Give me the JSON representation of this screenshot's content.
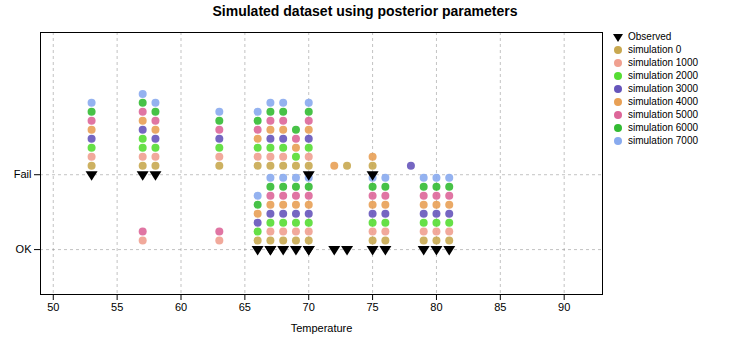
{
  "chart_data": {
    "type": "scatter",
    "title": "Simulated dataset using posterior parameters",
    "xlabel": "Temperature",
    "xlim": [
      49,
      93
    ],
    "xticks": [
      50,
      55,
      60,
      65,
      70,
      75,
      80,
      85,
      90
    ],
    "ylim": [
      -0.6,
      2.9
    ],
    "yticks": [
      {
        "value": 0,
        "label": "OK"
      },
      {
        "value": 1,
        "label": "Fail"
      }
    ],
    "grid": true,
    "legend": "upper right",
    "series": [
      {
        "name": "Observed",
        "color": "#000000",
        "marker": "triangle-down",
        "x": [
          53,
          57,
          58,
          70,
          75,
          66,
          67,
          67,
          68,
          69,
          70,
          70,
          72,
          73,
          75,
          76,
          79,
          80,
          81
        ],
        "values": [
          1,
          1,
          1,
          1,
          1,
          0,
          0,
          0,
          0,
          0,
          0,
          0,
          0,
          0,
          0,
          0,
          0,
          0,
          0
        ]
      },
      {
        "name": "simulation 0",
        "color": "#c8a850",
        "marker": "circle",
        "x": [
          53,
          57,
          58,
          63,
          66,
          67,
          68,
          69,
          70,
          73,
          75,
          66,
          67,
          68,
          69,
          70,
          75,
          76,
          79,
          80,
          81
        ],
        "values": [
          1,
          1,
          1,
          1,
          1,
          1,
          1,
          1,
          1,
          1,
          1,
          0,
          0,
          0,
          0,
          0,
          0,
          0,
          0,
          0,
          0
        ]
      },
      {
        "name": "simulation 1000",
        "color": "#f0a090",
        "marker": "circle",
        "x": [
          53,
          57,
          58,
          63,
          66,
          67,
          68,
          70,
          57,
          63,
          67,
          68,
          69,
          70,
          75,
          76,
          79,
          80,
          81
        ],
        "values": [
          1,
          1,
          1,
          1,
          1,
          1,
          1,
          1,
          0,
          0,
          0,
          0,
          0,
          0,
          0,
          0,
          0,
          0,
          0
        ]
      },
      {
        "name": "simulation 2000",
        "color": "#55dd33",
        "marker": "circle",
        "x": [
          53,
          57,
          57,
          58,
          63,
          66,
          67,
          68,
          69,
          70,
          66,
          67,
          68,
          69,
          70,
          75,
          76,
          79,
          80,
          81
        ],
        "values": [
          1,
          1,
          1,
          1,
          1,
          1,
          1,
          1,
          1,
          1,
          0,
          0,
          0,
          0,
          0,
          0,
          0,
          0,
          0,
          0
        ]
      },
      {
        "name": "simulation 3000",
        "color": "#6655bb",
        "marker": "circle",
        "x": [
          53,
          57,
          58,
          63,
          67,
          68,
          70,
          78,
          66,
          67,
          68,
          69,
          70,
          75,
          76,
          79,
          80,
          81
        ],
        "values": [
          1,
          1,
          1,
          1,
          1,
          1,
          1,
          1,
          0,
          0,
          0,
          0,
          0,
          0,
          0,
          0,
          0,
          0
        ]
      },
      {
        "name": "simulation 4000",
        "color": "#e8a055",
        "marker": "circle",
        "x": [
          53,
          57,
          58,
          66,
          67,
          68,
          69,
          70,
          72,
          75,
          66,
          67,
          68,
          69,
          70,
          75,
          76,
          79,
          80,
          81
        ],
        "values": [
          1,
          1,
          1,
          1,
          1,
          1,
          1,
          1,
          1,
          1,
          0,
          0,
          0,
          0,
          0,
          0,
          0,
          0,
          0,
          0
        ]
      },
      {
        "name": "simulation 5000",
        "color": "#dd6699",
        "marker": "circle",
        "x": [
          53,
          57,
          58,
          63,
          66,
          67,
          68,
          69,
          70,
          57,
          63,
          67,
          68,
          69,
          70,
          75,
          76,
          79,
          80,
          81
        ],
        "values": [
          1,
          1,
          1,
          1,
          1,
          1,
          1,
          1,
          1,
          0,
          0,
          0,
          0,
          0,
          0,
          0,
          0,
          0,
          0,
          0
        ]
      },
      {
        "name": "simulation 6000",
        "color": "#33bb33",
        "marker": "circle",
        "x": [
          53,
          57,
          58,
          63,
          66,
          67,
          68,
          69,
          70,
          66,
          67,
          68,
          69,
          70,
          75,
          76,
          79,
          80,
          81
        ],
        "values": [
          1,
          1,
          1,
          1,
          1,
          1,
          1,
          1,
          1,
          0,
          0,
          0,
          0,
          0,
          0,
          0,
          0,
          0,
          0
        ]
      },
      {
        "name": "simulation 7000",
        "color": "#88aaee",
        "marker": "circle",
        "x": [
          53,
          57,
          58,
          63,
          66,
          67,
          68,
          70,
          66,
          67,
          68,
          69,
          70,
          75,
          76,
          79,
          80,
          81
        ],
        "values": [
          1,
          1,
          1,
          1,
          1,
          1,
          1,
          1,
          0,
          0,
          0,
          0,
          0,
          0,
          0,
          0,
          0,
          0
        ]
      }
    ]
  }
}
